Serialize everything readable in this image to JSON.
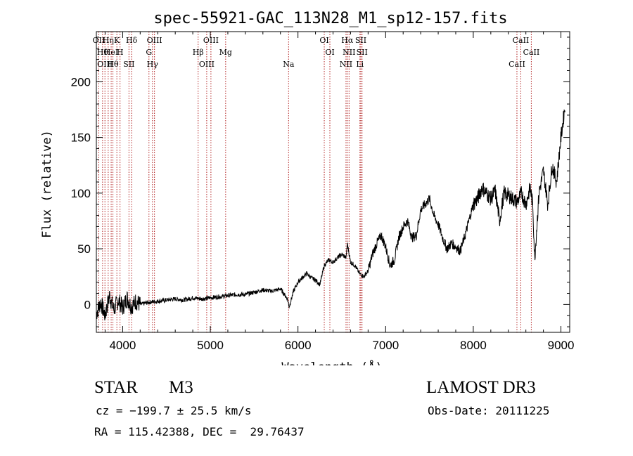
{
  "chart_data": {
    "type": "line",
    "title": "spec-55921-GAC_113N28_M1_sp12-157.fits",
    "xlabel": "Wavelength (Å)",
    "ylabel": "Flux (relative)",
    "xlim": [
      3700,
      9100
    ],
    "ylim": [
      -25,
      245
    ],
    "xticks": [
      4000,
      5000,
      6000,
      7000,
      8000,
      9000
    ],
    "yticks": [
      0,
      50,
      100,
      150,
      200
    ],
    "grid": false,
    "series": [
      {
        "name": "flux",
        "x": [
          3700,
          3750,
          3800,
          3850,
          3900,
          3950,
          4000,
          4050,
          4100,
          4150,
          4200,
          4300,
          4400,
          4500,
          4600,
          4700,
          4800,
          4900,
          5000,
          5100,
          5200,
          5300,
          5400,
          5500,
          5600,
          5700,
          5800,
          5880,
          5900,
          5950,
          6000,
          6050,
          6100,
          6150,
          6200,
          6250,
          6300,
          6350,
          6400,
          6450,
          6500,
          6550,
          6563,
          6600,
          6650,
          6700,
          6750,
          6800,
          6850,
          6900,
          6950,
          7000,
          7050,
          7100,
          7150,
          7200,
          7250,
          7300,
          7350,
          7400,
          7450,
          7500,
          7550,
          7600,
          7650,
          7700,
          7750,
          7800,
          7850,
          7900,
          7950,
          8000,
          8050,
          8100,
          8150,
          8200,
          8250,
          8300,
          8350,
          8400,
          8450,
          8500,
          8550,
          8600,
          8650,
          8680,
          8700,
          8750,
          8800,
          8850,
          8900,
          8950,
          9000,
          9050
        ],
        "y": [
          -8,
          2,
          -10,
          8,
          -5,
          4,
          -3,
          6,
          -2,
          3,
          0,
          2,
          3,
          4,
          5,
          4,
          6,
          5,
          6,
          7,
          8,
          9,
          9,
          11,
          13,
          12,
          14,
          5,
          -2,
          12,
          20,
          24,
          28,
          24,
          22,
          18,
          35,
          40,
          38,
          42,
          45,
          42,
          55,
          38,
          35,
          28,
          25,
          30,
          45,
          55,
          62,
          52,
          35,
          40,
          60,
          70,
          75,
          60,
          62,
          85,
          90,
          95,
          80,
          72,
          60,
          50,
          55,
          52,
          48,
          60,
          75,
          90,
          95,
          105,
          100,
          95,
          102,
          75,
          100,
          98,
          95,
          92,
          100,
          90,
          105,
          88,
          40,
          100,
          120,
          90,
          125,
          110,
          150,
          180
        ]
      }
    ],
    "lines": [
      {
        "wl": 3727,
        "label": "OII"
      },
      {
        "wl": 3771,
        "label": "Hθ"
      },
      {
        "wl": 3798,
        "label": "OIII"
      },
      {
        "wl": 3835,
        "label": "Hη"
      },
      {
        "wl": 3869,
        "label": "HeI"
      },
      {
        "wl": 3889,
        "label": "Hθ"
      },
      {
        "wl": 3934,
        "label": "K"
      },
      {
        "wl": 3970,
        "label": "H"
      },
      {
        "wl": 4072,
        "label": "SII"
      },
      {
        "wl": 4102,
        "label": "Hδ"
      },
      {
        "wl": 4300,
        "label": "G"
      },
      {
        "wl": 4340,
        "label": "Hγ"
      },
      {
        "wl": 4363,
        "label": "OIII"
      },
      {
        "wl": 4861,
        "label": "Hβ"
      },
      {
        "wl": 4959,
        "label": "OIII"
      },
      {
        "wl": 5007,
        "label": "OIII"
      },
      {
        "wl": 5175,
        "label": "Mg"
      },
      {
        "wl": 5893,
        "label": "Na"
      },
      {
        "wl": 6300,
        "label": "OI"
      },
      {
        "wl": 6364,
        "label": "OI"
      },
      {
        "wl": 6548,
        "label": "NII"
      },
      {
        "wl": 6563,
        "label": "Hα"
      },
      {
        "wl": 6583,
        "label": "NII"
      },
      {
        "wl": 6707,
        "label": "Li"
      },
      {
        "wl": 6717,
        "label": "SII"
      },
      {
        "wl": 6731,
        "label": "SII"
      },
      {
        "wl": 8498,
        "label": "CaII"
      },
      {
        "wl": 8542,
        "label": "CaII"
      },
      {
        "wl": 8662,
        "label": "CaII"
      }
    ]
  },
  "info": {
    "class": "STAR",
    "subclass": "M3",
    "survey": "LAMOST DR3",
    "cz": "cz = −199.7 ± 25.5 km/s",
    "obs_date": "Obs-Date: 20111225",
    "coords": "RA = 115.42388, DEC =  29.76437"
  }
}
